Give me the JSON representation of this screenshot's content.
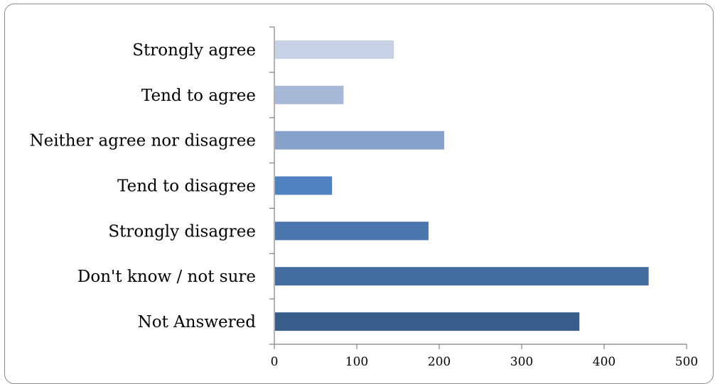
{
  "chart_data": {
    "type": "bar",
    "orientation": "horizontal",
    "categories": [
      "Strongly agree",
      "Tend to agree",
      "Neither agree nor disagree",
      "Tend to disagree",
      "Strongly disagree",
      "Don't know / not sure",
      "Not Answered"
    ],
    "values": [
      145,
      84,
      206,
      70,
      187,
      454,
      370
    ],
    "colors": [
      "#c6d1e4",
      "#a7b8d6",
      "#86a2cb",
      "#5082c2",
      "#4a76ad",
      "#426b9e",
      "#385d8a"
    ],
    "xlim": [
      0,
      500
    ],
    "xticks": [
      "0",
      "100",
      "200",
      "300",
      "400",
      "500"
    ],
    "title": "",
    "xlabel": "",
    "ylabel": "",
    "grid": false,
    "legend": "none"
  }
}
